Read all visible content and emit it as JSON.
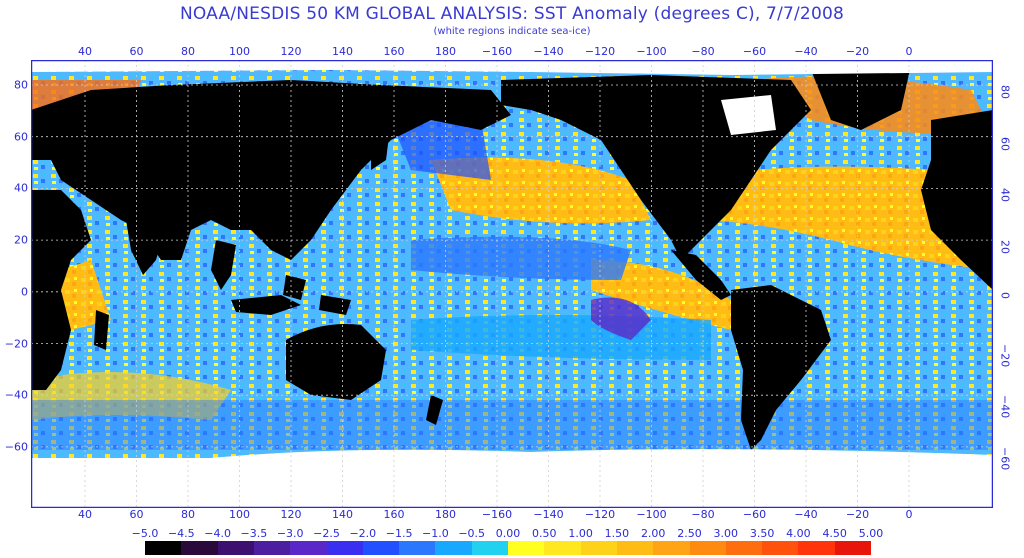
{
  "title": "NOAA/NESDIS 50 KM GLOBAL ANALYSIS: SST Anomaly (degrees C), 7/7/2008",
  "subtitle": "(white regions indicate sea-ice)",
  "lon_ticks_top": [
    "40",
    "60",
    "80",
    "100",
    "120",
    "140",
    "160",
    "180",
    "−160",
    "−140",
    "−120",
    "−100",
    "−80",
    "−60",
    "−40",
    "−20",
    "0"
  ],
  "lon_ticks_bottom": [
    "40",
    "60",
    "80",
    "100",
    "120",
    "140",
    "160",
    "180",
    "−160",
    "−140",
    "−120",
    "−100",
    "−80",
    "−60",
    "−40",
    "−20",
    "0"
  ],
  "lat_ticks_left": [
    "80",
    "60",
    "40",
    "20",
    "0",
    "−20",
    "−40",
    "−60"
  ],
  "lat_ticks_right": [
    "80",
    "60",
    "40",
    "20",
    "0",
    "−20",
    "−40",
    "−60"
  ],
  "colorbar": {
    "labels": [
      "−5.0",
      "−4.5",
      "−4.0",
      "−3.5",
      "−3.0",
      "−2.5",
      "−2.0",
      "−1.5",
      "−1.0",
      "−0.5",
      "0.00",
      "0.50",
      "1.00",
      "1.50",
      "2.00",
      "2.50",
      "3.00",
      "3.50",
      "4.00",
      "4.50",
      "5.00"
    ],
    "colors": [
      "#000000",
      "#2a0a3a",
      "#3d0f6e",
      "#4b1fa0",
      "#5a28c8",
      "#3a2ff0",
      "#2050ff",
      "#2b78ff",
      "#18a8ff",
      "#22d0f0",
      "#ffff20",
      "#ffe820",
      "#ffd21a",
      "#ffbc14",
      "#ffa414",
      "#ff8a10",
      "#ff6e0e",
      "#ff520c",
      "#ff340a",
      "#e8160a"
    ]
  },
  "colors": {
    "ocean_neutral": "#3ea8ff",
    "land": "#000000",
    "sea_ice": "#ffffff",
    "frame": "#2b2bd6",
    "grid": "#d0d0d0"
  }
}
